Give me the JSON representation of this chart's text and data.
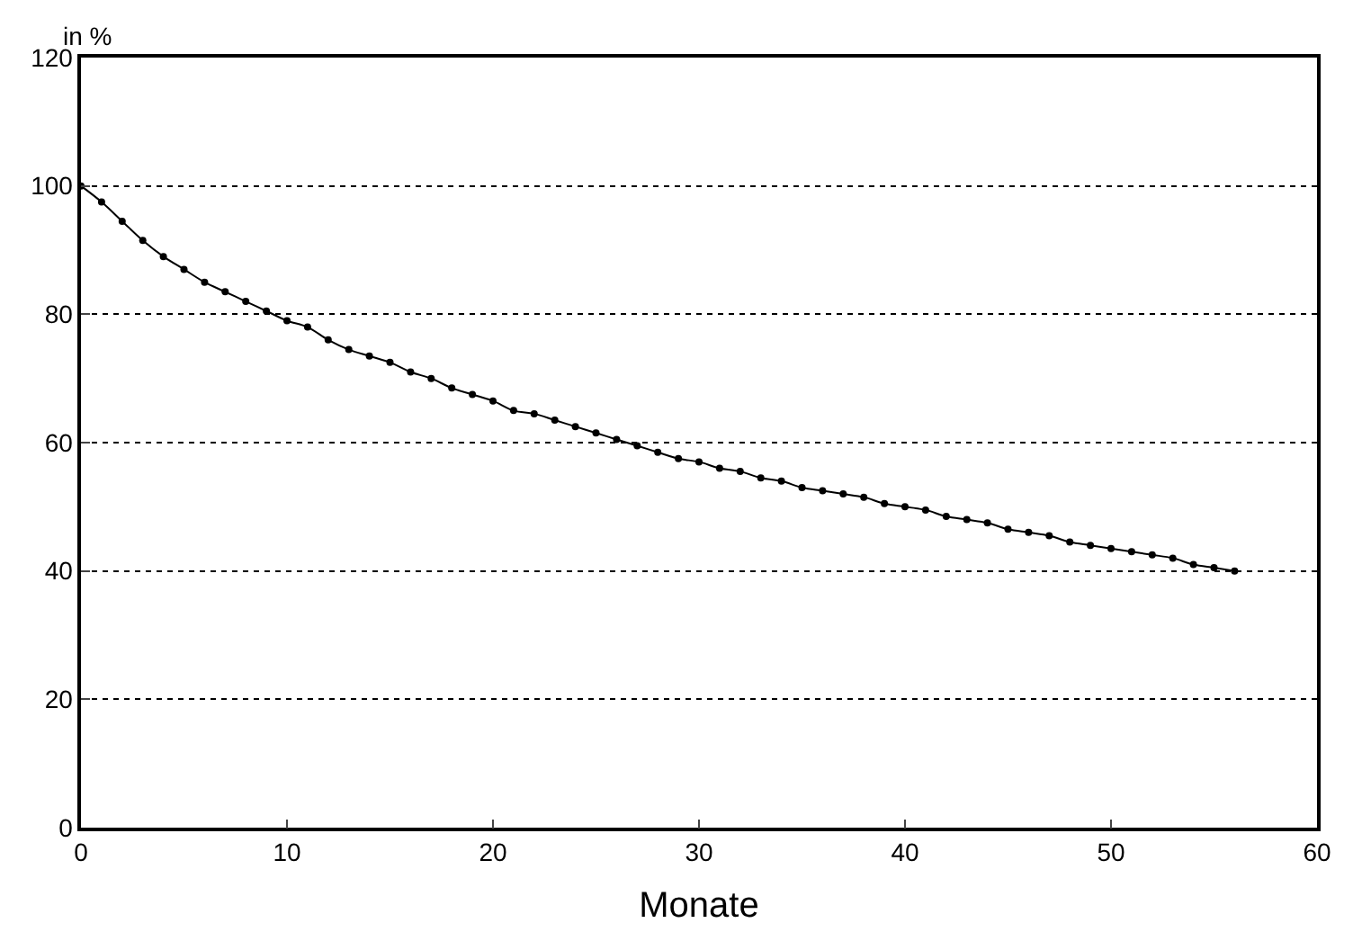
{
  "chart_data": {
    "type": "line",
    "xlabel": "Monate",
    "ylabel": "in %",
    "x": [
      0,
      1,
      2,
      3,
      4,
      5,
      6,
      7,
      8,
      9,
      10,
      11,
      12,
      13,
      14,
      15,
      16,
      17,
      18,
      19,
      20,
      21,
      22,
      23,
      24,
      25,
      26,
      27,
      28,
      29,
      30,
      31,
      32,
      33,
      34,
      35,
      36,
      37,
      38,
      39,
      40,
      41,
      42,
      43,
      44,
      45,
      46,
      47,
      48,
      49,
      50,
      51,
      52,
      53,
      54,
      55,
      56
    ],
    "series": [
      {
        "color": "#000000",
        "values": [
          100,
          97.5,
          94.5,
          91.5,
          89,
          87,
          85,
          83.5,
          82,
          80.5,
          79,
          78,
          76,
          74.5,
          73.5,
          72.5,
          71,
          70,
          68.5,
          67.5,
          66.5,
          65,
          64.5,
          63.5,
          62.5,
          61.5,
          60.5,
          59.5,
          58.5,
          57.5,
          57,
          56,
          55.5,
          54.5,
          54,
          53,
          52.5,
          52,
          51.5,
          50.5,
          50,
          49.5,
          48.5,
          48,
          47.5,
          46.5,
          46,
          45.5,
          44.5,
          44,
          43.5,
          43,
          42.5,
          42,
          41,
          40.5,
          40
        ]
      }
    ],
    "xlim": [
      0,
      60
    ],
    "xticks": [
      0,
      10,
      20,
      30,
      40,
      50,
      60
    ],
    "ylim": [
      0,
      120
    ],
    "yticks": [
      0,
      20,
      40,
      60,
      80,
      100,
      120
    ],
    "grid": "y",
    "marker": "circle",
    "line_style": "solid",
    "legend": false
  }
}
